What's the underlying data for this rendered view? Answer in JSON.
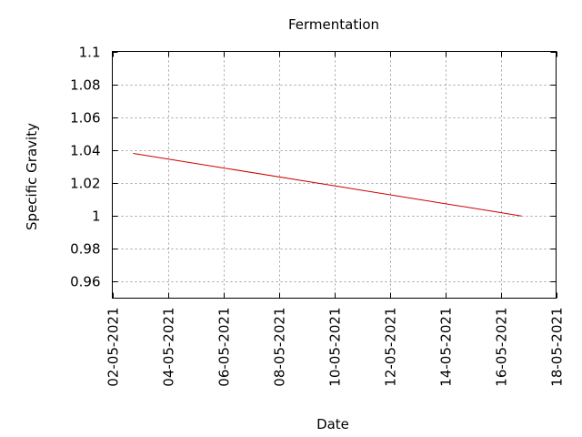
{
  "chart_data": {
    "type": "line",
    "title": "Fermentation",
    "xlabel": "Date",
    "ylabel": "Specific Gravity",
    "x_axis_type": "date",
    "xlim": [
      "2021-05-02",
      "2021-05-18"
    ],
    "ylim": [
      0.95,
      1.1
    ],
    "x_ticks": [
      "2021-05-02",
      "2021-05-04",
      "2021-05-06",
      "2021-05-08",
      "2021-05-10",
      "2021-05-12",
      "2021-05-14",
      "2021-05-16",
      "2021-05-18"
    ],
    "x_tick_labels": [
      "02-05-2021",
      "04-05-2021",
      "06-05-2021",
      "08-05-2021",
      "10-05-2021",
      "12-05-2021",
      "14-05-2021",
      "16-05-2021",
      "18-05-2021"
    ],
    "y_ticks": [
      0.96,
      0.98,
      1.0,
      1.02,
      1.04,
      1.06,
      1.08,
      1.1
    ],
    "y_tick_labels": [
      "0.96",
      "0.98",
      "1",
      "1.02",
      "1.04",
      "1.06",
      "1.08",
      "1.1"
    ],
    "grid": true,
    "series": [
      {
        "color": "#cc0000",
        "x": [
          "2021-05-02T18:00",
          "2021-05-16T18:00"
        ],
        "y": [
          1.038,
          1.0
        ]
      }
    ]
  }
}
